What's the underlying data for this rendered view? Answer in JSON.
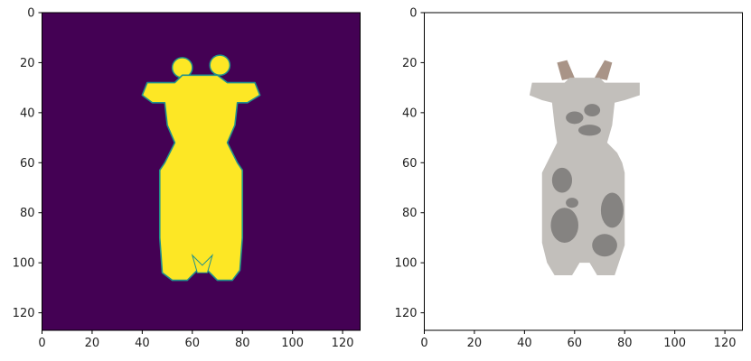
{
  "figure": {
    "background_color": "#ffffff"
  },
  "chart_data": [
    {
      "type": "heatmap",
      "content": "binary silhouette mask of a cow figurine",
      "colormap": "viridis",
      "background_value_color": "#440154",
      "foreground_value_color": "#fde725",
      "edge_color": "#21918c",
      "image_size": [
        128,
        128
      ],
      "xlim": [
        0,
        127
      ],
      "ylim": [
        127,
        0
      ],
      "xticks": [
        0,
        20,
        40,
        60,
        80,
        100,
        120
      ],
      "yticks": [
        0,
        20,
        40,
        60,
        80,
        100,
        120
      ],
      "xtick_labels": [
        "0",
        "20",
        "40",
        "60",
        "80",
        "100",
        "120"
      ],
      "ytick_labels": [
        "0",
        "20",
        "40",
        "60",
        "80",
        "100",
        "120"
      ],
      "title": "",
      "xlabel": "",
      "ylabel": ""
    },
    {
      "type": "heatmap",
      "content": "RGB rendering of a gray cow figurine with dark spots",
      "background_color": "#ffffff",
      "body_color": "#c2bfbb",
      "spot_color": "#858381",
      "horn_color": "#a99487",
      "image_size": [
        128,
        128
      ],
      "xlim": [
        0,
        127
      ],
      "ylim": [
        127,
        0
      ],
      "xticks": [
        0,
        20,
        40,
        60,
        80,
        100,
        120
      ],
      "yticks": [
        0,
        20,
        40,
        60,
        80,
        100,
        120
      ],
      "xtick_labels": [
        "0",
        "20",
        "40",
        "60",
        "80",
        "100",
        "120"
      ],
      "ytick_labels": [
        "0",
        "20",
        "40",
        "60",
        "80",
        "100",
        "120"
      ],
      "title": "",
      "xlabel": "",
      "ylabel": ""
    }
  ]
}
